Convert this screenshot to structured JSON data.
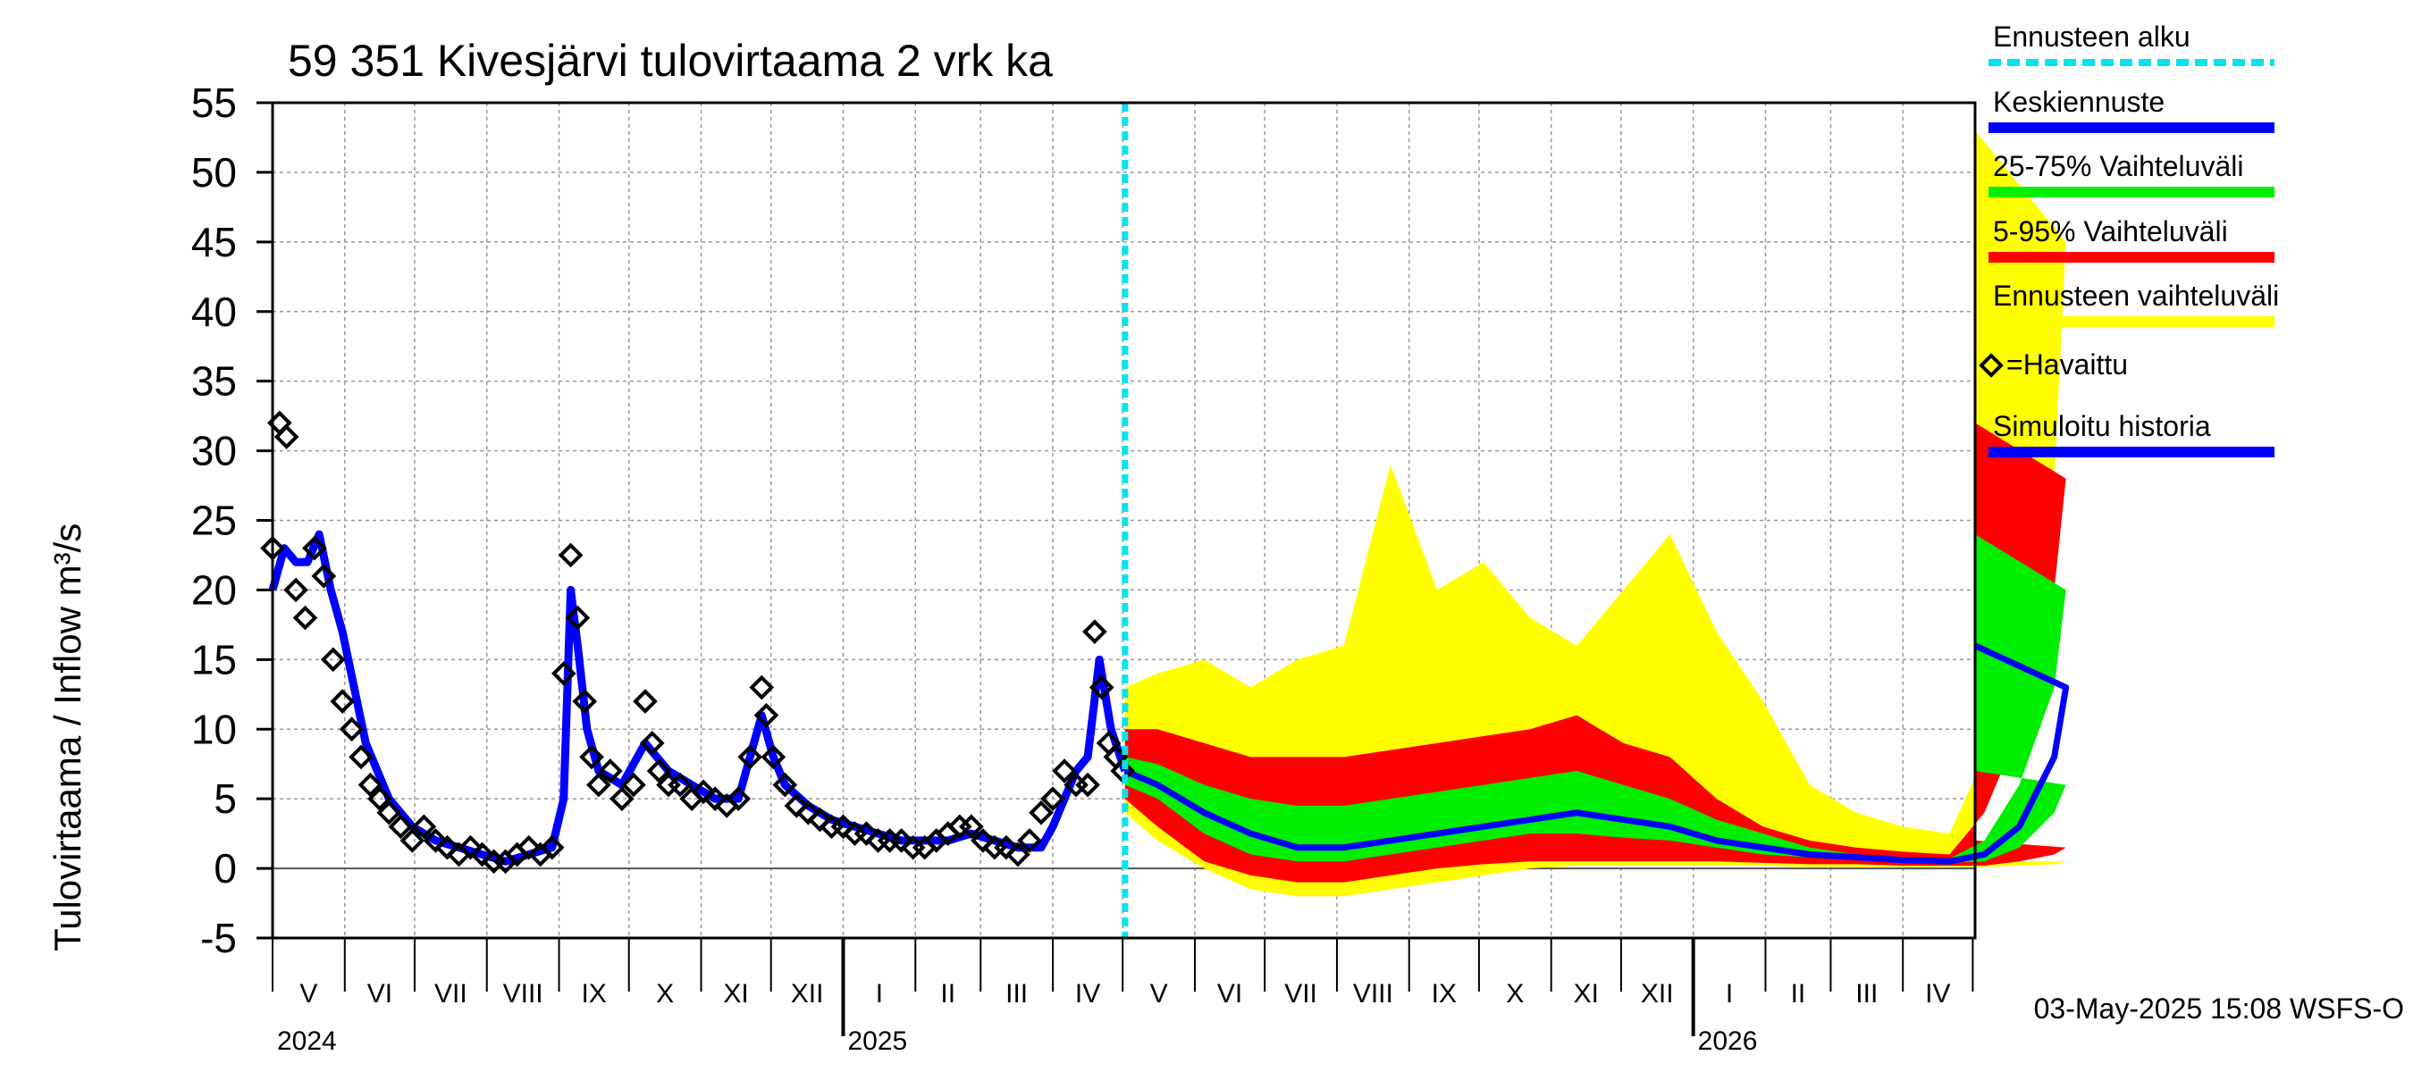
{
  "chart_data": {
    "type": "line",
    "title": "59 351 Kivesjärvi tulovirtaama 2 vrk ka",
    "ylabel": "Tulovirtaama / Inflow    m³/s",
    "ylim": [
      -5,
      55
    ],
    "yticks": [
      -5,
      0,
      5,
      10,
      15,
      20,
      25,
      30,
      35,
      40,
      45,
      50,
      55
    ],
    "x_months": [
      "V",
      "VI",
      "VII",
      "VIII",
      "IX",
      "X",
      "XI",
      "XII",
      "I",
      "II",
      "III",
      "IV",
      "V",
      "VI",
      "VII",
      "VIII",
      "IX",
      "X",
      "XI",
      "XII",
      "I",
      "II",
      "III",
      "IV"
    ],
    "x_years": [
      "2024",
      "2025",
      "2026"
    ],
    "forecast_start_day": 366,
    "grid": true,
    "legend": [
      {
        "label": "Ennusteen alku",
        "color": "#00e5ee"
      },
      {
        "label": "Keskiennuste",
        "color": "#0000ff"
      },
      {
        "label": "25-75% Vaihteluväli",
        "color": "#00ee00"
      },
      {
        "label": "5-95% Vaihteluväli",
        "color": "#ff0000"
      },
      {
        "label": "Ennusteen vaihteluväli",
        "color": "#ffff00"
      },
      {
        "label": "=Havaittu",
        "color": "#000000"
      },
      {
        "label": "Simuloitu historia",
        "color": "#0000ff"
      }
    ],
    "observed": {
      "x": [
        0,
        3,
        6,
        10,
        14,
        18,
        22,
        26,
        30,
        34,
        38,
        42,
        46,
        50,
        55,
        60,
        65,
        70,
        75,
        80,
        85,
        90,
        95,
        100,
        105,
        110,
        115,
        120,
        125,
        128,
        131,
        134,
        137,
        140,
        145,
        150,
        155,
        160,
        163,
        166,
        170,
        175,
        180,
        185,
        190,
        195,
        200,
        205,
        210,
        212,
        215,
        220,
        225,
        230,
        235,
        240,
        245,
        250,
        255,
        260,
        265,
        270,
        275,
        280,
        285,
        290,
        295,
        300,
        305,
        310,
        315,
        320,
        325,
        330,
        335,
        340,
        345,
        350,
        353,
        356,
        359,
        362,
        365
      ],
      "values": [
        23,
        32,
        31,
        20,
        18,
        23,
        21,
        15,
        12,
        10,
        8,
        6,
        5,
        4,
        3,
        2,
        3,
        2,
        1.5,
        1,
        1.5,
        1,
        0.5,
        0.5,
        1,
        1.5,
        1,
        1.5,
        14,
        22.5,
        18,
        12,
        8,
        6,
        7,
        5,
        6,
        12,
        9,
        7,
        6,
        6,
        5,
        5.5,
        5,
        4.5,
        5,
        8,
        13,
        11,
        8,
        6,
        4.5,
        4,
        3.5,
        3,
        3,
        2.5,
        2.5,
        2,
        2,
        2,
        1.5,
        1.5,
        2,
        2.5,
        3,
        3,
        2,
        1.5,
        1.5,
        1,
        2,
        4,
        5,
        7,
        6,
        6,
        17,
        13,
        9,
        8,
        7
      ]
    },
    "simulated_history": {
      "x": [
        0,
        5,
        10,
        15,
        20,
        25,
        30,
        35,
        40,
        45,
        50,
        60,
        70,
        80,
        90,
        100,
        110,
        120,
        125,
        128,
        131,
        135,
        140,
        150,
        160,
        170,
        180,
        190,
        200,
        205,
        210,
        215,
        220,
        230,
        240,
        250,
        260,
        270,
        280,
        290,
        300,
        310,
        320,
        330,
        335,
        340,
        345,
        350,
        355,
        360,
        366
      ],
      "values": [
        20,
        23,
        22,
        22,
        24,
        20,
        17,
        13,
        9,
        7,
        5,
        3,
        2,
        1.5,
        1,
        0.5,
        1,
        1.5,
        5,
        20,
        16,
        10,
        7,
        6,
        9,
        7,
        6,
        5,
        5,
        8,
        11,
        8,
        6,
        4.5,
        3.5,
        3,
        2.5,
        2,
        2,
        2,
        2.5,
        2,
        1.5,
        1.5,
        3,
        5,
        7,
        8,
        15,
        10,
        7
      ]
    },
    "forecast": {
      "x": [
        366,
        380,
        400,
        420,
        440,
        460,
        480,
        500,
        520,
        540,
        560,
        580,
        600,
        620,
        640,
        660,
        680,
        700,
        720,
        735,
        750,
        765,
        770,
        731
      ],
      "median": [
        7,
        6,
        4,
        2.5,
        1.5,
        1.5,
        2,
        2.5,
        3,
        3.5,
        4,
        3.5,
        3,
        2,
        1.5,
        1,
        0.8,
        0.6,
        0.5,
        1,
        3,
        8,
        13,
        16
      ],
      "p25": [
        6,
        5,
        2.5,
        1,
        0.5,
        0.5,
        1,
        1.5,
        2,
        2.5,
        2.5,
        2.2,
        2,
        1.5,
        1,
        0.8,
        0.6,
        0.5,
        0.4,
        0.5,
        1.5,
        4,
        6,
        7
      ],
      "p75": [
        8,
        7.5,
        6,
        5,
        4.5,
        4.5,
        5,
        5.5,
        6,
        6.5,
        7,
        6,
        5,
        3.5,
        2.5,
        1.5,
        1,
        0.8,
        0.7,
        2,
        6,
        13,
        20,
        24
      ],
      "p05": [
        5,
        3,
        0.5,
        -0.5,
        -1,
        -1,
        -0.5,
        0,
        0.3,
        0.5,
        0.5,
        0.5,
        0.5,
        0.5,
        0.4,
        0.3,
        0.3,
        0.2,
        0.2,
        0.2,
        0.5,
        1,
        1.5,
        2
      ],
      "p95": [
        10,
        10,
        9,
        8,
        8,
        8,
        8.5,
        9,
        9.5,
        10,
        11,
        9,
        8,
        5,
        3,
        2,
        1.5,
        1.2,
        1,
        4,
        10,
        20,
        28,
        32
      ],
      "min": [
        4,
        2,
        0,
        -1.5,
        -2,
        -2,
        -1.5,
        -1,
        -0.5,
        0,
        0.2,
        0.2,
        0.2,
        0.2,
        0.2,
        0.1,
        0.1,
        0.1,
        0.1,
        0.1,
        0.2,
        0.3,
        0.5,
        0.5
      ],
      "max": [
        13,
        14,
        15,
        13,
        15,
        16,
        29,
        20,
        22,
        18,
        16,
        20,
        24,
        17,
        12,
        6,
        4,
        3,
        2.5,
        8,
        16,
        28,
        45,
        53
      ]
    }
  },
  "footer": {
    "timestamp": "03-May-2025 15:08 WSFS-O"
  }
}
